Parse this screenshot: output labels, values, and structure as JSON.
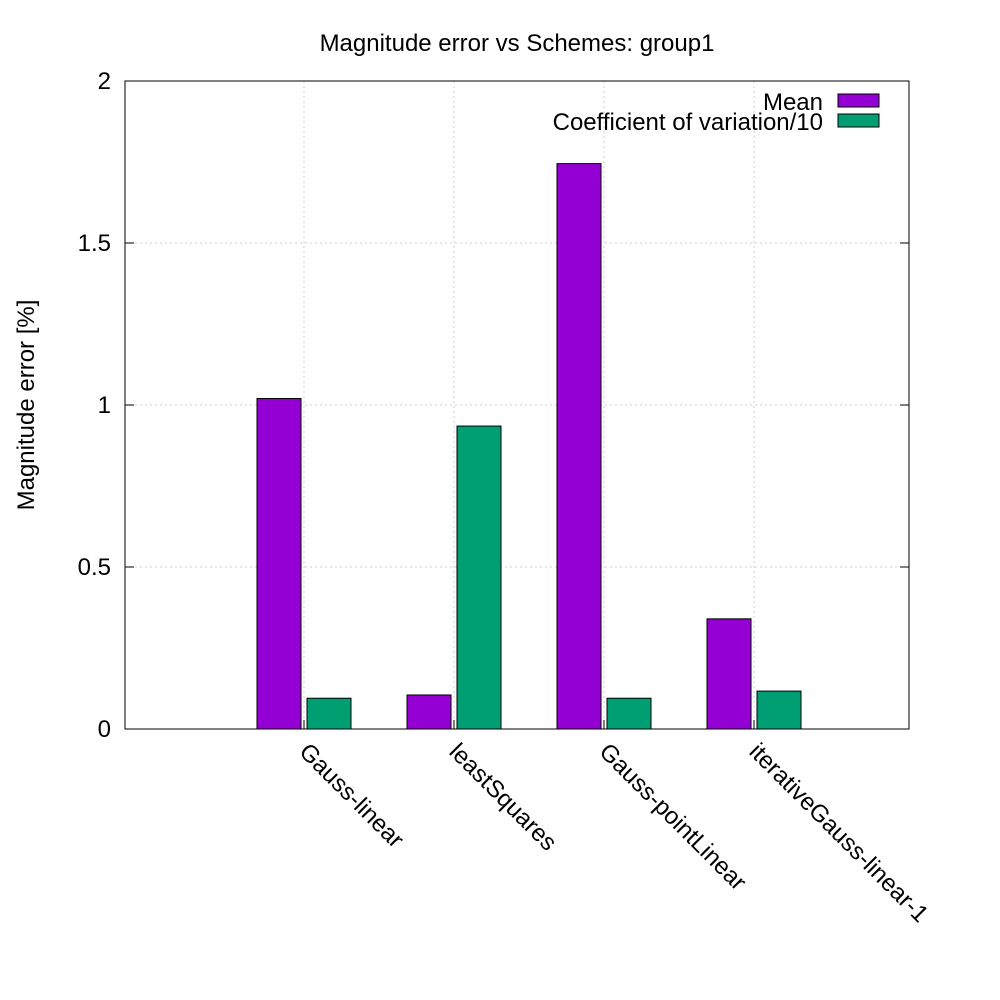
{
  "chart_data": {
    "type": "bar",
    "title": "Magnitude error vs Schemes: group1",
    "xlabel": "",
    "ylabel": "Magnitude error [%]",
    "ylim": [
      0,
      2
    ],
    "yticks": [
      0,
      0.5,
      1,
      1.5,
      2
    ],
    "ytick_labels": [
      "0",
      "0.5",
      "1",
      "1.5",
      "2"
    ],
    "grid": true,
    "legend_position": "top-right",
    "categories": [
      "Gauss-linear",
      "leastSquares",
      "Gauss-pointLinear",
      "iterativeGauss-linear-1"
    ],
    "series": [
      {
        "name": "Mean",
        "color": "#9400d3",
        "values": [
          1.02,
          0.105,
          1.745,
          0.34
        ]
      },
      {
        "name": "Coefficient of variation/10",
        "color": "#009e73",
        "values": [
          0.095,
          0.935,
          0.095,
          0.117
        ]
      }
    ]
  }
}
